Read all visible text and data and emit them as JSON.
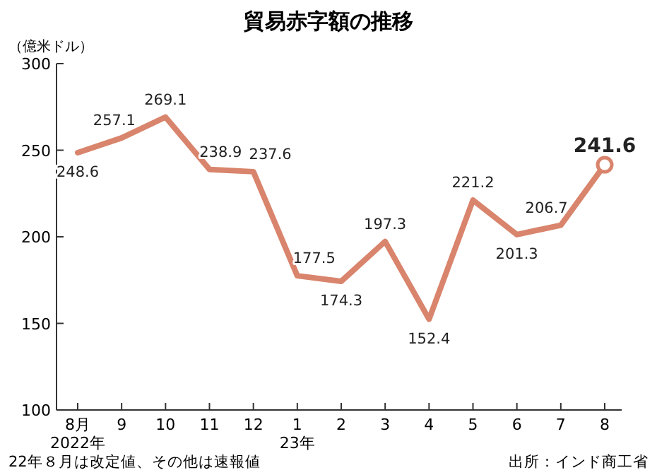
{
  "chart_data": {
    "type": "line",
    "title": "貿易赤字額の推移",
    "ylabel": "（億米ドル）",
    "categories": [
      "8月\n2022年",
      "9",
      "10",
      "11",
      "12",
      "1\n23年",
      "2",
      "3",
      "4",
      "5",
      "6",
      "7",
      "8"
    ],
    "series": [
      {
        "color": "#d9846c",
        "values": [
          248.6,
          257.1,
          269.1,
          238.9,
          237.6,
          177.5,
          174.3,
          197.3,
          152.4,
          221.2,
          201.3,
          206.7,
          241.6
        ],
        "value_labels": [
          "248.6",
          "257.1",
          "269.1",
          "238.9",
          "237.6",
          "177.5",
          "174.3",
          "197.3",
          "152.4",
          "221.2",
          "201.3",
          "206.7",
          null
        ]
      },
      {
        "type": "scatter",
        "color": "#d9846c",
        "x": [
          "8"
        ],
        "values": [
          241.6
        ],
        "value_labels": [
          "241.6"
        ]
      }
    ],
    "ylim": [
      100,
      300
    ],
    "yticks": [
      100,
      150,
      200,
      250,
      300
    ],
    "grid": false,
    "line_style": "solid",
    "annotations": [
      "22年８月は改定値、その他は速報値",
      "出所：インド商工省"
    ]
  }
}
